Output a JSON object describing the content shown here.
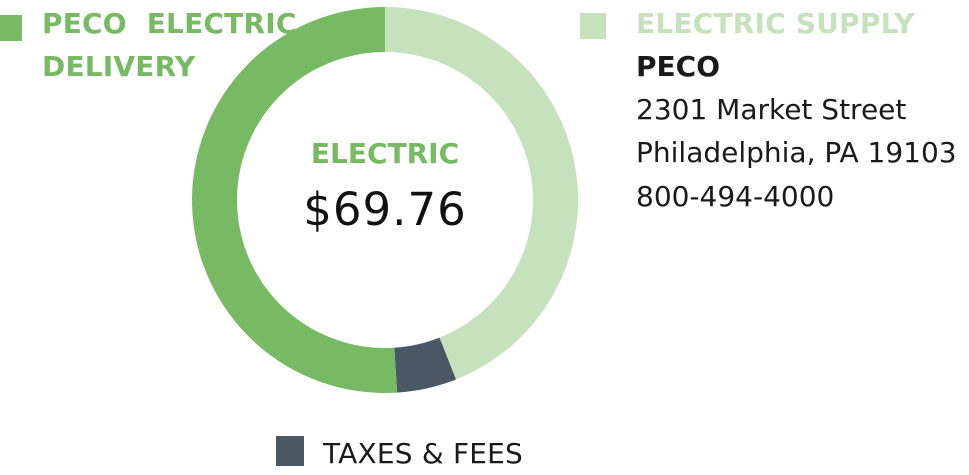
{
  "chart_data": {
    "type": "pie",
    "categories": [
      "PECO ELECTRIC DELIVERY",
      "ELECTRIC SUPPLY",
      "TAXES & FEES"
    ],
    "values": [
      51,
      44,
      5
    ],
    "colors": [
      "#78b964",
      "#c5e2bd",
      "#4a5866"
    ],
    "center_label": "ELECTRIC",
    "center_value": "$69.76"
  },
  "legend": {
    "delivery_line1": "PECO  ELECTRIC",
    "delivery_line2": "DELIVERY",
    "supply": "ELECTRIC SUPPLY",
    "taxes": "TAXES & FEES"
  },
  "supplier": {
    "name": "PECO",
    "street": "2301 Market Street",
    "city": "Philadelphia, PA 19103",
    "phone": "800-494-4000"
  }
}
